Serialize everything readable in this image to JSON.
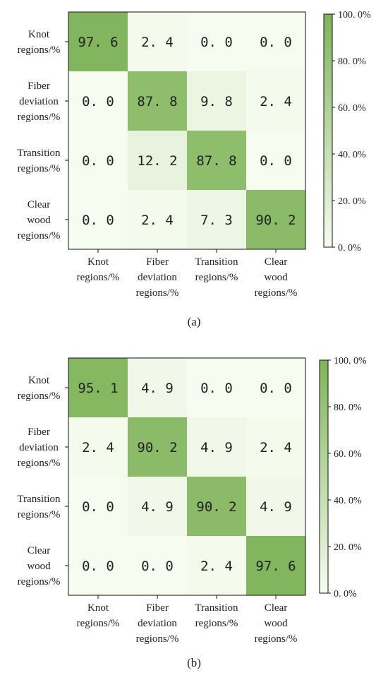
{
  "chart_data": [
    {
      "type": "heatmap",
      "caption": "(a)",
      "row_labels": [
        [
          "Knot",
          "regions/%"
        ],
        [
          "Fiber",
          "deviation",
          "regions/%"
        ],
        [
          "Transition",
          "regions/%"
        ],
        [
          "Clear",
          "wood",
          "regions/%"
        ]
      ],
      "col_labels": [
        [
          "Knot",
          "regions/%"
        ],
        [
          "Fiber",
          "deviation",
          "regions/%"
        ],
        [
          "Transition",
          "regions/%"
        ],
        [
          "Clear",
          "wood",
          "regions/%"
        ]
      ],
      "values": [
        [
          97.6,
          2.4,
          0.0,
          0.0
        ],
        [
          0.0,
          87.8,
          9.8,
          2.4
        ],
        [
          0.0,
          12.2,
          87.8,
          0.0
        ],
        [
          0.0,
          2.4,
          7.3,
          90.2
        ]
      ],
      "colorbar": {
        "range": [
          0,
          100
        ],
        "ticks": [
          "0. 0%",
          "20. 0%",
          "40. 0%",
          "60. 0%",
          "80. 0%",
          "100. 0%"
        ],
        "colors": [
          "#f7fcf0",
          "#7fb45a"
        ]
      }
    },
    {
      "type": "heatmap",
      "caption": "(b)",
      "row_labels": [
        [
          "Knot",
          "regions/%"
        ],
        [
          "Fiber",
          "deviation",
          "regions/%"
        ],
        [
          "Transition",
          "regions/%"
        ],
        [
          "Clear",
          "wood",
          "regions/%"
        ]
      ],
      "col_labels": [
        [
          "Knot",
          "regions/%"
        ],
        [
          "Fiber",
          "deviation",
          "regions/%"
        ],
        [
          "Transition",
          "regions/%"
        ],
        [
          "Clear",
          "wood",
          "regions/%"
        ]
      ],
      "values": [
        [
          95.1,
          4.9,
          0.0,
          0.0
        ],
        [
          2.4,
          90.2,
          4.9,
          2.4
        ],
        [
          0.0,
          4.9,
          90.2,
          4.9
        ],
        [
          0.0,
          0.0,
          2.4,
          97.6
        ]
      ],
      "colorbar": {
        "range": [
          0,
          100
        ],
        "ticks": [
          "0. 0%",
          "20. 0%",
          "40. 0%",
          "60. 0%",
          "80. 0%",
          "100. 0%"
        ],
        "colors": [
          "#f7fcf0",
          "#7fb45a"
        ]
      }
    }
  ]
}
